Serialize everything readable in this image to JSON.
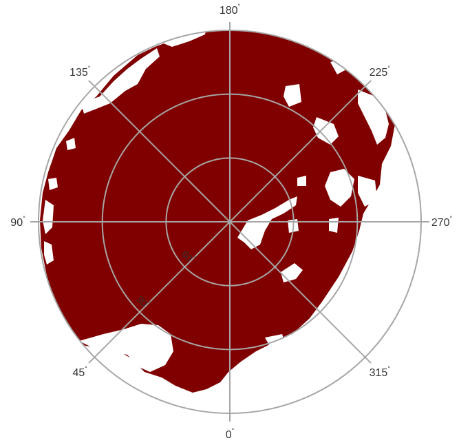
{
  "chart_data": {
    "type": "polar-map",
    "fill_color": "#800000",
    "background_color": "#ffffff",
    "grid_color": "#a6a6a6",
    "angular_ticks": [
      {
        "angle": 0,
        "label": "0"
      },
      {
        "angle": 45,
        "label": "45"
      },
      {
        "angle": 90,
        "label": "90"
      },
      {
        "angle": 135,
        "label": "135"
      },
      {
        "angle": 180,
        "label": "180"
      },
      {
        "angle": 225,
        "label": "225"
      },
      {
        "angle": 270,
        "label": "270"
      },
      {
        "angle": 315,
        "label": "315"
      }
    ],
    "angle_unit_symbol": "°",
    "radial_ticks": [
      {
        "value": 60,
        "label": "60"
      },
      {
        "value": 30,
        "label": "30"
      }
    ],
    "radial_axis_label_unit": "°",
    "radial_range": [
      0,
      90
    ],
    "grid": true
  }
}
